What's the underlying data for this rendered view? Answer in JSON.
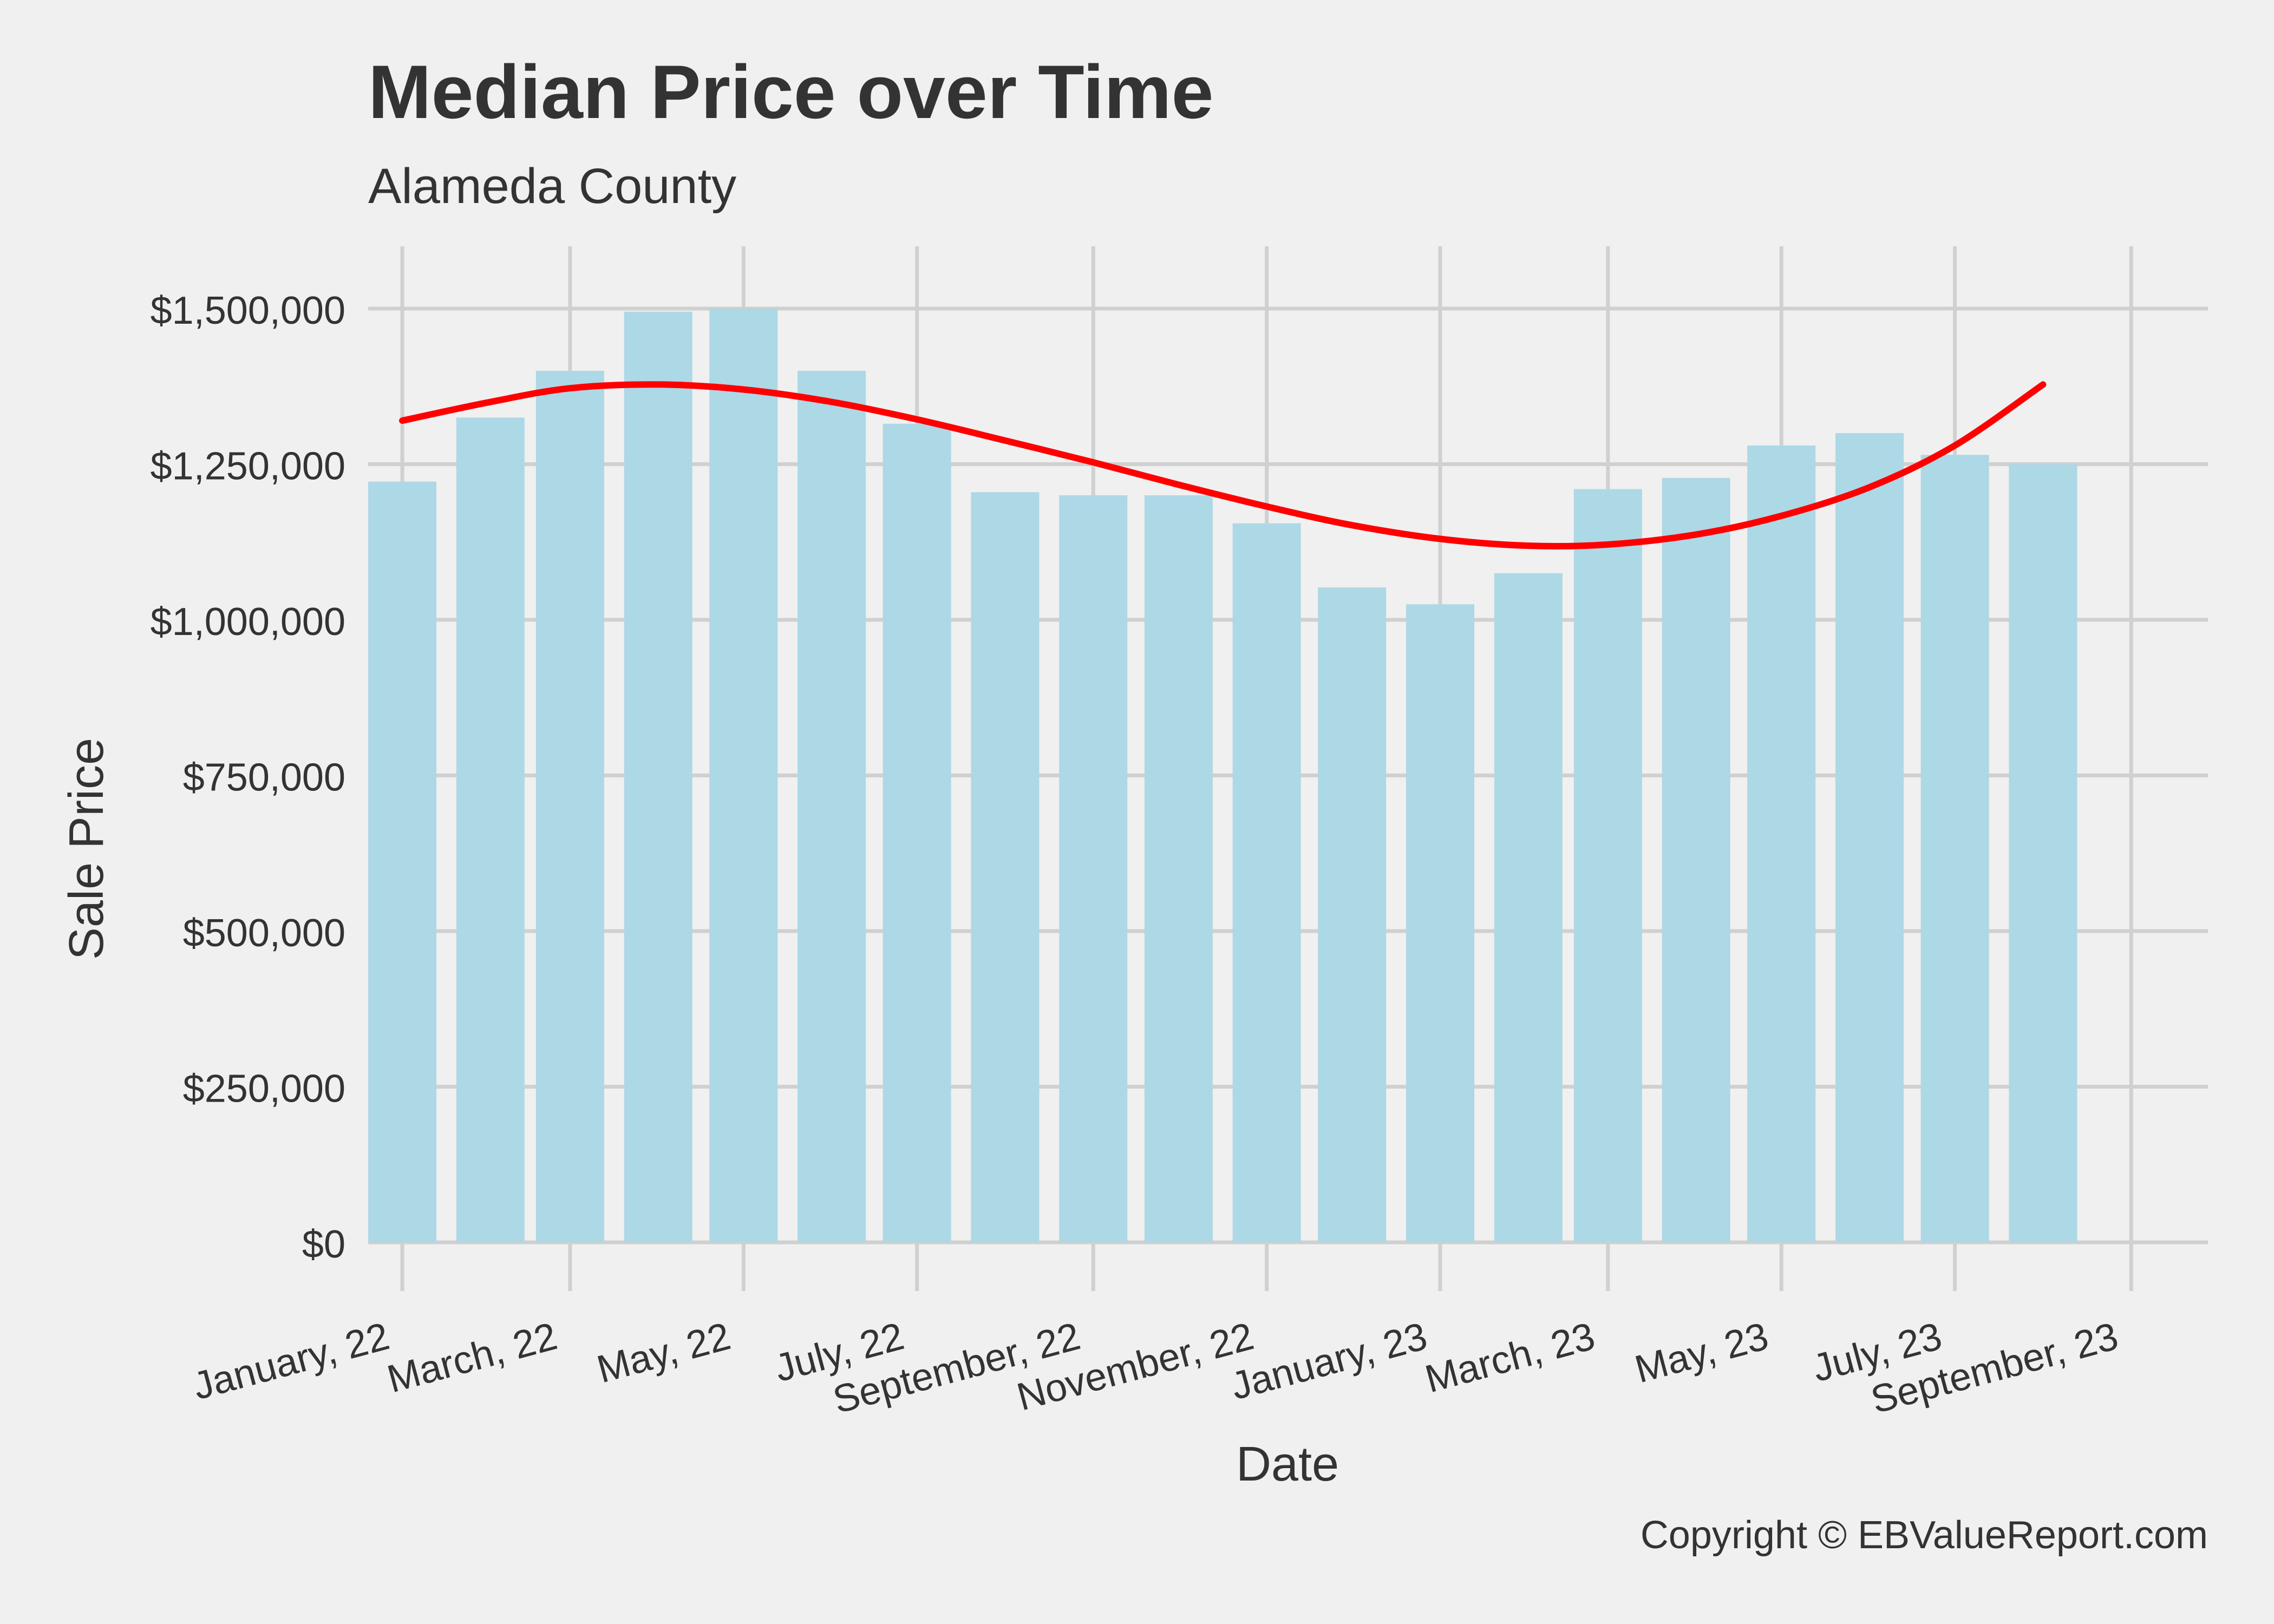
{
  "chart_data": {
    "type": "bar",
    "title": "Median Price over Time",
    "subtitle": "Alameda County",
    "xlabel": "Date",
    "ylabel": "Sale Price",
    "caption": "Copyright  © EBValueReport.com",
    "ylim": [
      0,
      1600000
    ],
    "yticks": [
      0,
      250000,
      500000,
      750000,
      1000000,
      1250000,
      1500000
    ],
    "ytick_labels": [
      "$0",
      "$250,000",
      "$500,000",
      "$750,000",
      "$1,000,000",
      "$1,250,000",
      "$1,500,000"
    ],
    "xlim": [
      "2021-12-20",
      "2023-09-28"
    ],
    "xticks": [
      "2022-01-01",
      "2022-03-01",
      "2022-05-01",
      "2022-07-01",
      "2022-09-01",
      "2022-11-01",
      "2023-01-01",
      "2023-03-01",
      "2023-05-01",
      "2023-07-01",
      "2023-09-01"
    ],
    "xtick_labels": [
      "January, 22",
      "March, 22",
      "May, 22",
      "July, 22",
      "September, 22",
      "November, 22",
      "January, 23",
      "March, 23",
      "May, 23",
      "July, 23",
      "September, 23"
    ],
    "bar_color": "#add8e6",
    "trend_color": "#ff0000",
    "grid": true,
    "bars": [
      {
        "date": "2022-01-01",
        "value": 1222000
      },
      {
        "date": "2022-02-01",
        "value": 1325000
      },
      {
        "date": "2022-03-01",
        "value": 1400000
      },
      {
        "date": "2022-04-01",
        "value": 1495000
      },
      {
        "date": "2022-05-01",
        "value": 1500000
      },
      {
        "date": "2022-06-01",
        "value": 1400000
      },
      {
        "date": "2022-07-01",
        "value": 1315000
      },
      {
        "date": "2022-08-01",
        "value": 1205000
      },
      {
        "date": "2022-09-01",
        "value": 1200000
      },
      {
        "date": "2022-10-01",
        "value": 1200000
      },
      {
        "date": "2022-11-01",
        "value": 1155000
      },
      {
        "date": "2022-12-01",
        "value": 1052000
      },
      {
        "date": "2023-01-01",
        "value": 1025000
      },
      {
        "date": "2023-02-01",
        "value": 1075000
      },
      {
        "date": "2023-03-01",
        "value": 1210000
      },
      {
        "date": "2023-04-01",
        "value": 1228000
      },
      {
        "date": "2023-05-01",
        "value": 1280000
      },
      {
        "date": "2023-06-01",
        "value": 1300000
      },
      {
        "date": "2023-07-01",
        "value": 1265000
      },
      {
        "date": "2023-08-01",
        "value": 1250000
      }
    ],
    "trend": [
      {
        "date": "2022-01-01",
        "value": 1320000
      },
      {
        "date": "2022-02-01",
        "value": 1350000
      },
      {
        "date": "2022-03-01",
        "value": 1372000
      },
      {
        "date": "2022-04-01",
        "value": 1378000
      },
      {
        "date": "2022-05-01",
        "value": 1370000
      },
      {
        "date": "2022-06-01",
        "value": 1350000
      },
      {
        "date": "2022-07-01",
        "value": 1322000
      },
      {
        "date": "2022-08-01",
        "value": 1288000
      },
      {
        "date": "2022-09-01",
        "value": 1253000
      },
      {
        "date": "2022-10-01",
        "value": 1217000
      },
      {
        "date": "2022-11-01",
        "value": 1182000
      },
      {
        "date": "2022-12-01",
        "value": 1152000
      },
      {
        "date": "2023-01-01",
        "value": 1130000
      },
      {
        "date": "2023-02-01",
        "value": 1119000
      },
      {
        "date": "2023-03-01",
        "value": 1121000
      },
      {
        "date": "2023-04-01",
        "value": 1137000
      },
      {
        "date": "2023-05-01",
        "value": 1167000
      },
      {
        "date": "2023-06-01",
        "value": 1213000
      },
      {
        "date": "2023-07-01",
        "value": 1280000
      },
      {
        "date": "2023-08-01",
        "value": 1378000
      }
    ]
  }
}
